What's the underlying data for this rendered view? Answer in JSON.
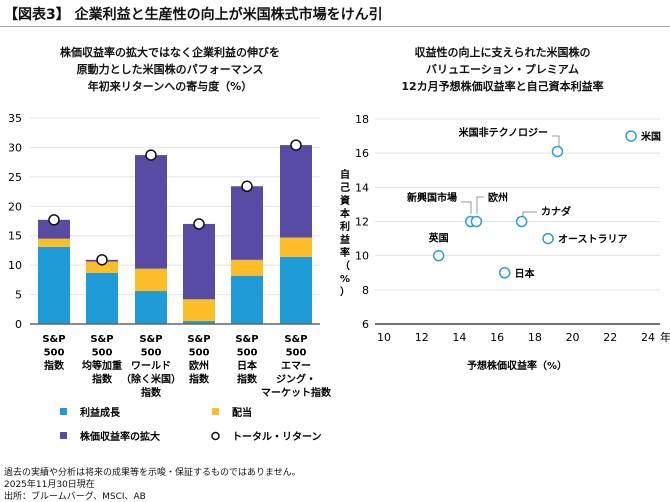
{
  "title": "【図表3】 企業利益と生産性の向上が米国株式市場をけん引",
  "left_subtitle": [
    "株価収益率の拡大ではなく企業利益の伸びを",
    "原動力とした米国株のパフォーマンス",
    "年初来リターンへの寄与度（%）"
  ],
  "right_subtitle": [
    "収益性の向上に支えられた米国株の",
    "バリュエーション・プレミアム",
    "12カ月予想株価収益率と自己資本利益率"
  ],
  "footer": [
    "過去の実績や分析は将来の成果等を示唆・保証するものではありません。",
    "2025年11月30日現在",
    "出所：ブルームバーグ、MSCI、AB"
  ],
  "colors": {
    "earnings": "#1f9bd7",
    "dividend": "#fbbd28",
    "pe": "#574ba3",
    "scatter": "#2a9fd8"
  },
  "chart_data": [
    {
      "type": "bar",
      "stacked": true,
      "title": "年初来リターンへの寄与度（%）",
      "categories": [
        "S&P\n500\n指数",
        "S&P\n500\n均等加重\n指数",
        "S&P\n500\nワールド\n（除く米国）\n指数",
        "S&P\n500\n欧州\n指数",
        "S&P\n500\n日本\n指数",
        "S&P\n500\nエマー\nジング・\nマーケット指数"
      ],
      "series": [
        {
          "name": "利益成長",
          "values": [
            13.1,
            8.7,
            5.6,
            0.5,
            8.2,
            11.4
          ]
        },
        {
          "name": "配当",
          "values": [
            1.4,
            1.9,
            3.8,
            3.7,
            2.7,
            3.3
          ]
        },
        {
          "name": "株価収益率の拡大",
          "values": [
            3.2,
            0.3,
            19.3,
            12.8,
            12.5,
            15.7
          ]
        }
      ],
      "total": {
        "name": "トータル・リターン",
        "values": [
          17.7,
          10.9,
          28.7,
          17.0,
          23.4,
          30.4
        ]
      },
      "ylim": [
        0,
        35
      ],
      "yticks": [
        0,
        5,
        10,
        15,
        20,
        25,
        30,
        35
      ],
      "grid": true,
      "legend": "bottom"
    },
    {
      "type": "scatter",
      "title": "12カ月予想株価収益率と自己資本利益率",
      "xlabel": "予想株価収益率（%）",
      "ylabel": "自己資本利益率（%）",
      "x_unit": "年",
      "xlim": [
        10,
        24
      ],
      "xticks": [
        10,
        12,
        14,
        16,
        18,
        20,
        22,
        24
      ],
      "ylim": [
        6,
        18
      ],
      "yticks": [
        6,
        8,
        10,
        12,
        14,
        16,
        18
      ],
      "points": [
        {
          "label": "米国",
          "x": 23.1,
          "y": 17.0
        },
        {
          "label": "米国非テクノロジー",
          "x": 19.2,
          "y": 16.1
        },
        {
          "label": "新興国市場",
          "x": 14.6,
          "y": 12.0
        },
        {
          "label": "欧州",
          "x": 14.9,
          "y": 12.0
        },
        {
          "label": "カナダ",
          "x": 17.3,
          "y": 12.0
        },
        {
          "label": "オーストラリア",
          "x": 18.7,
          "y": 11.0
        },
        {
          "label": "英国",
          "x": 12.9,
          "y": 10.0
        },
        {
          "label": "日本",
          "x": 16.4,
          "y": 9.0
        }
      ]
    }
  ]
}
